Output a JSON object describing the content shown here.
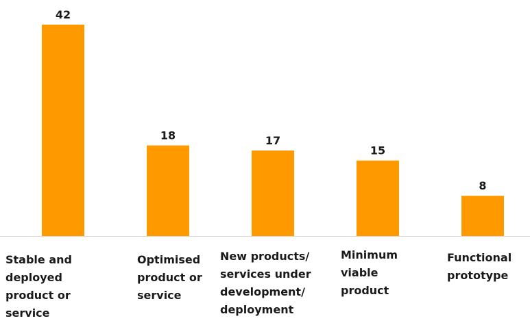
{
  "colors": {
    "bar": "#FF9900",
    "baseline": "#d9d9d9",
    "text": "#1a1a1a"
  },
  "chart_data": {
    "type": "bar",
    "title": "",
    "xlabel": "",
    "ylabel": "",
    "ylim": [
      0,
      42
    ],
    "grid": false,
    "categories": [
      "Stable and deployed product or service",
      "Optimised product or service",
      "New products/ services under development/ deployment",
      "Minimum viable product",
      "Functional prototype"
    ],
    "category_lines": [
      [
        "Stable and",
        "deployed",
        "product or",
        "service"
      ],
      [
        "Optimised",
        "product or",
        "service"
      ],
      [
        "New products/",
        "services under",
        "development/",
        "deployment"
      ],
      [
        "Minimum",
        "viable",
        "product"
      ],
      [
        "Functional",
        "prototype"
      ]
    ],
    "values": [
      42,
      18,
      17,
      15,
      8
    ]
  }
}
